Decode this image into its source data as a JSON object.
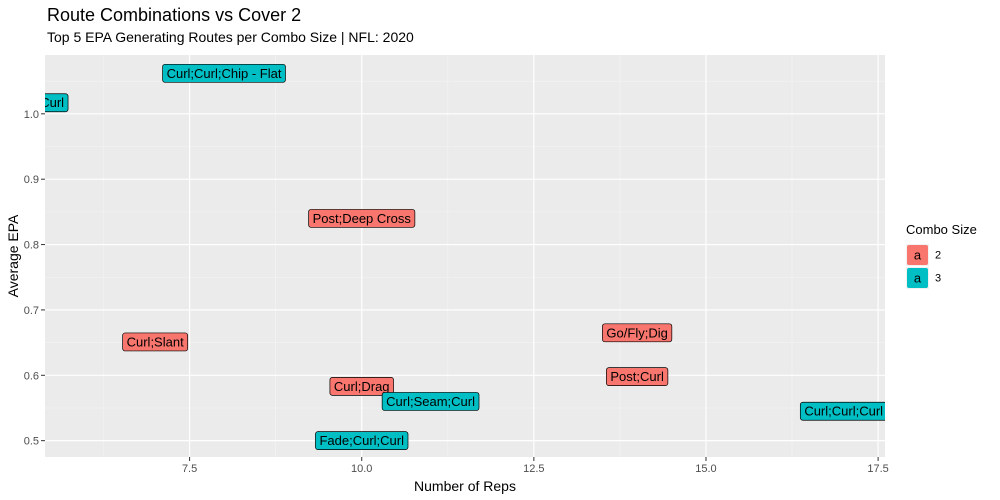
{
  "chart_data": {
    "type": "scatter",
    "title": "Route Combinations vs Cover 2",
    "subtitle": "Top 5 EPA Generating Routes per Combo Size | NFL: 2020",
    "xlabel": "Number of Reps",
    "ylabel": "Average EPA",
    "xlim": [
      5.4,
      17.6
    ],
    "ylim": [
      0.475,
      1.09
    ],
    "xticks": [
      7.5,
      10.0,
      12.5,
      15.0,
      17.5
    ],
    "xtick_labels": [
      "7.5",
      "10.0",
      "12.5",
      "15.0",
      "17.5"
    ],
    "yticks": [
      0.5,
      0.6,
      0.7,
      0.8,
      0.9,
      1.0
    ],
    "ytick_labels": [
      "0.5",
      "0.6",
      "0.7",
      "0.8",
      "0.9",
      "1.0"
    ],
    "grid": true,
    "legend": {
      "title": "Combo Size",
      "placement": "right",
      "key_glyph": "a",
      "entries": [
        {
          "name": "2",
          "color": "#F8766D"
        },
        {
          "name": "3",
          "color": "#00BFC4"
        }
      ]
    },
    "series": [
      {
        "name": "2",
        "color": "#F8766D",
        "points": [
          {
            "label": "Post;Deep Cross",
            "x": 10.0,
            "y": 0.84
          },
          {
            "label": "Go/Fly;Dig",
            "x": 14.0,
            "y": 0.665
          },
          {
            "label": "Curl;Slant",
            "x": 7.0,
            "y": 0.651
          },
          {
            "label": "Post;Curl",
            "x": 14.0,
            "y": 0.598
          },
          {
            "label": "Curl;Drag",
            "x": 10.0,
            "y": 0.583
          }
        ]
      },
      {
        "name": "3",
        "color": "#00BFC4",
        "points": [
          {
            "label": "Curl;Curl;Chip - Flat",
            "x": 8.0,
            "y": 1.062
          },
          {
            "label": "Go/Fly;Curl;Curl",
            "x": 5.0,
            "y": 1.017
          },
          {
            "label": "Curl;Seam;Curl",
            "x": 11.0,
            "y": 0.56
          },
          {
            "label": "Curl;Curl;Curl",
            "x": 17.0,
            "y": 0.545
          },
          {
            "label": "Fade;Curl;Curl",
            "x": 10.0,
            "y": 0.5
          }
        ]
      }
    ]
  }
}
